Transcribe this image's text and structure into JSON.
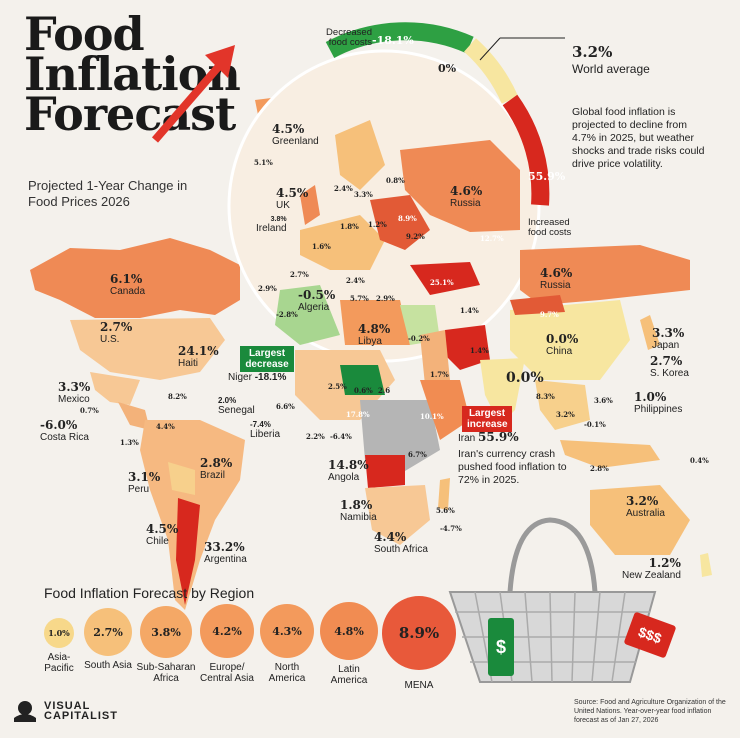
{
  "title": {
    "line1": "Food",
    "line2": "Inflation",
    "line3": "Forecast"
  },
  "subtitle": "Projected 1-Year Change in Food Prices 2026",
  "gauge": {
    "decreased_label": "Decreased food costs",
    "min_value": "-18.1%",
    "mid_value": "0%",
    "max_value": "55.9%",
    "increased_label": "Increased food costs"
  },
  "world": {
    "value": "3.2%",
    "label": "World average"
  },
  "note_global": "Global food inflation is projected to decline from 4.7% in 2025, but weather shocks and trade risks could drive price volatility.",
  "note_iran": "Iran's currency crash pushed food inflation to 72% in 2025.",
  "callouts": {
    "largest_decrease": "Largest decrease",
    "largest_increase": "Largest increase"
  },
  "countries": [
    {
      "name": "Greenland",
      "value": "4.5%"
    },
    {
      "name": "UK",
      "value": "4.5%"
    },
    {
      "name": "Ireland",
      "value": "3.8%"
    },
    {
      "name": "Russia",
      "value": "4.6%"
    },
    {
      "name": "Russia",
      "value": "4.6%"
    },
    {
      "name": "Canada",
      "value": "6.1%"
    },
    {
      "name": "U.S.",
      "value": "2.7%"
    },
    {
      "name": "Haiti",
      "value": "24.1%"
    },
    {
      "name": "Mexico",
      "value": "3.3%"
    },
    {
      "name": "Costa Rica",
      "value": "-6.0%"
    },
    {
      "name": "Algeria",
      "value": "-0.5%"
    },
    {
      "name": "Libya",
      "value": "4.8%"
    },
    {
      "name": "Niger",
      "value": "-18.1%"
    },
    {
      "name": "Senegal",
      "value": "2.0%"
    },
    {
      "name": "Liberia",
      "value": "-7.4%"
    },
    {
      "name": "China",
      "value": "0.0%"
    },
    {
      "name": "Japan",
      "value": "3.3%"
    },
    {
      "name": "S. Korea",
      "value": "2.7%"
    },
    {
      "name": "Philippines",
      "value": "1.0%"
    },
    {
      "name": "Iran",
      "value": "55.9%"
    },
    {
      "name": "Brazil",
      "value": "2.8%"
    },
    {
      "name": "Peru",
      "value": "3.1%"
    },
    {
      "name": "Chile",
      "value": "4.5%"
    },
    {
      "name": "Argentina",
      "value": "33.2%"
    },
    {
      "name": "Angola",
      "value": "14.8%"
    },
    {
      "name": "Namibia",
      "value": "1.8%"
    },
    {
      "name": "South Africa",
      "value": "4.4%"
    },
    {
      "name": "Australia",
      "value": "3.2%"
    },
    {
      "name": "New Zealand",
      "value": "1.2%"
    }
  ],
  "small_values": [
    "5.1%",
    "2.4%",
    "3.3%",
    "0.8%",
    "1.8%",
    "1.2%",
    "8.9%",
    "9.2%",
    "12.7%",
    "1.6%",
    "2.7%",
    "2.4%",
    "2.9%",
    "5.7%",
    "2.9%",
    "-2.8%",
    "-0.2%",
    "25.1%",
    "1.4%",
    "9.7%",
    "1.4%",
    "1.7%",
    "8.3%",
    "3.2%",
    "3.6%",
    "-0.1%",
    "2.8%",
    "0.4%",
    "0.0%",
    "8.2%",
    "0.7%",
    "1.3%",
    "4.4%",
    "2.5%",
    "0.6%",
    "6.6%",
    "2.6",
    "2.2%",
    "-6.4%",
    "17.8%",
    "10.1%",
    "6.7%",
    "5.6%",
    "-4.7%"
  ],
  "regions_title": "Food Inflation Forecast by Region",
  "regions": [
    {
      "name": "Asia-Pacific",
      "value": "1.0%",
      "color": "#f7d88a"
    },
    {
      "name": "South Asia",
      "value": "2.7%",
      "color": "#f6c07a"
    },
    {
      "name": "Sub-Saharan Africa",
      "value": "3.8%",
      "color": "#f4a866"
    },
    {
      "name": "Europe/ Central Asia",
      "value": "4.2%",
      "color": "#f39a5c"
    },
    {
      "name": "North America",
      "value": "4.3%",
      "color": "#f39a5c"
    },
    {
      "name": "Latin America",
      "value": "4.8%",
      "color": "#f18c52"
    },
    {
      "name": "MENA",
      "value": "8.9%",
      "color": "#e8593a"
    }
  ],
  "tags": {
    "green": "$",
    "red": "$$$"
  },
  "source": "Source: Food and Agriculture Organization of the United Nations. Year-over-year food inflation forecast as of Jan 27, 2026",
  "logo": {
    "line1": "VISUAL",
    "line2": "CAPITALIST"
  },
  "colors": {
    "background": "#f4f1ec",
    "decrease": "#1a8a3c",
    "increase": "#d7281e",
    "neutral": "#f7e6a0",
    "mid": "#f2a05f",
    "high": "#e25a36",
    "no_data": "#b5b5b5"
  }
}
